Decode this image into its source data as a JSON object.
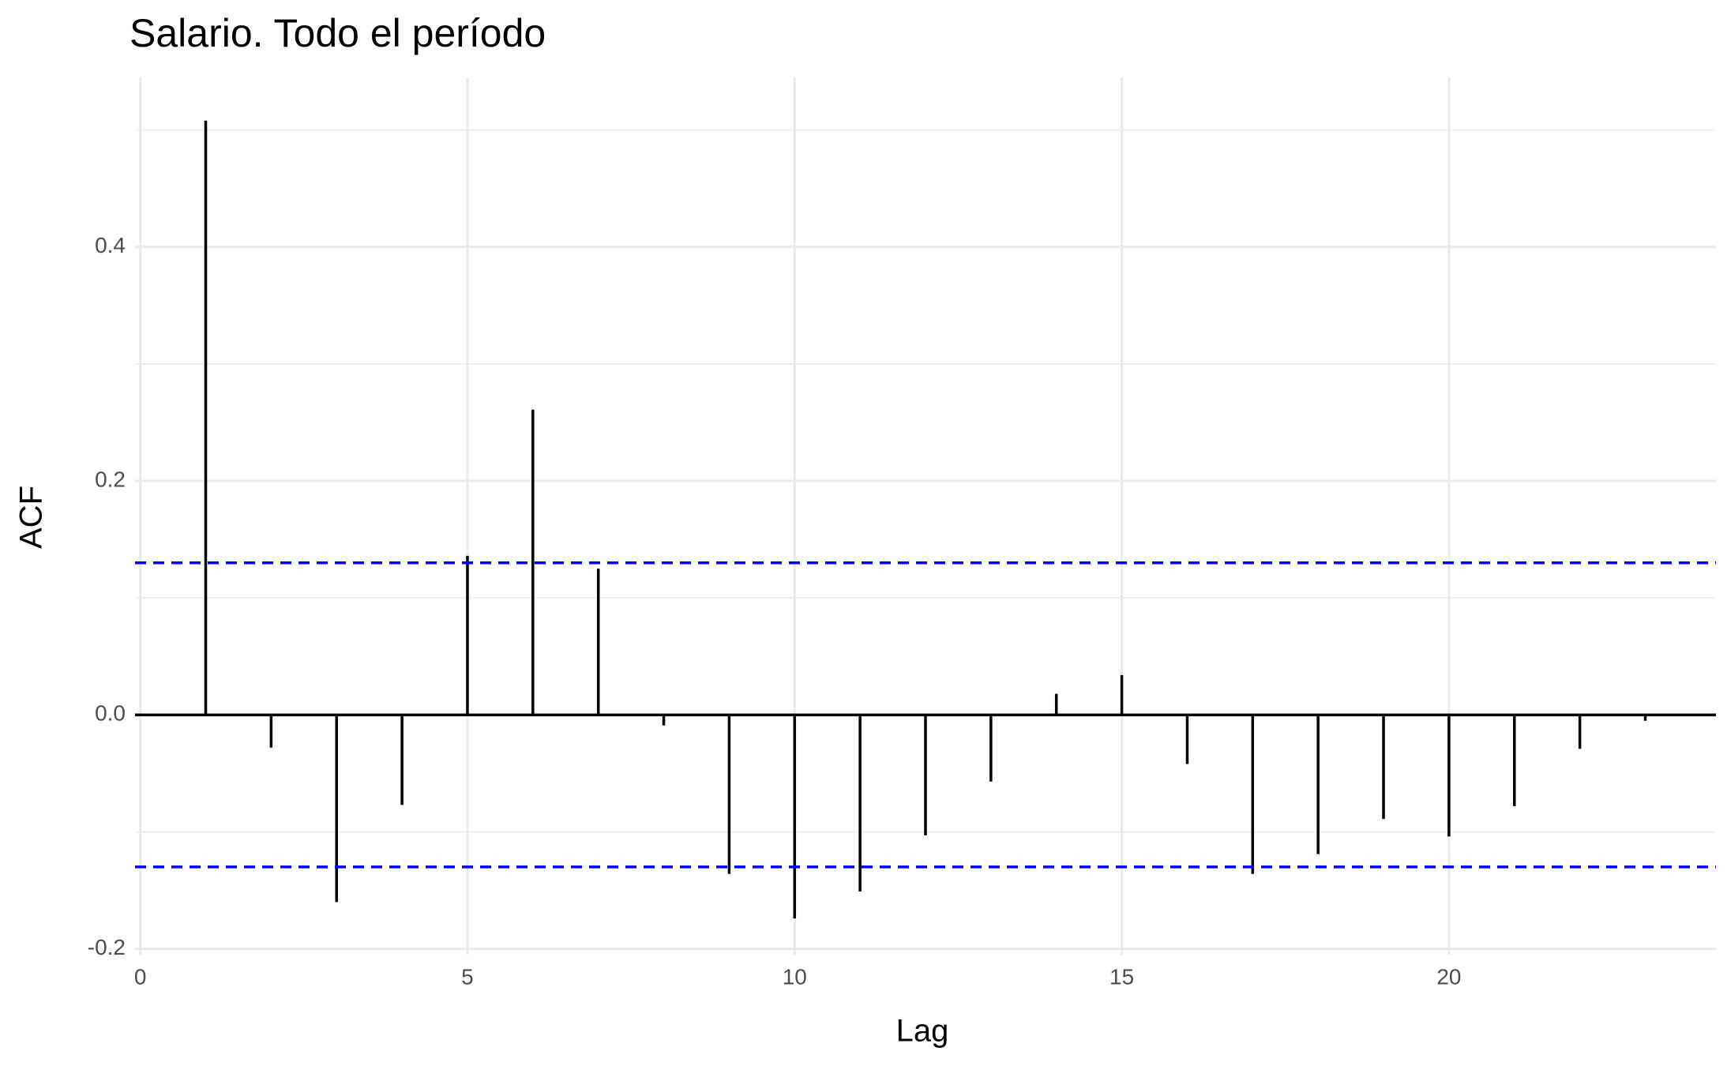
{
  "chart_data": {
    "type": "acf",
    "title": "Salario. Todo el período",
    "x_label": "Lag",
    "y_label": "ACF",
    "x": [
      1,
      2,
      3,
      4,
      5,
      6,
      7,
      8,
      9,
      10,
      11,
      12,
      13,
      14,
      15,
      16,
      17,
      18,
      19,
      20,
      21,
      22,
      23
    ],
    "values": [
      0.508,
      -0.028,
      -0.16,
      -0.077,
      0.136,
      0.261,
      0.125,
      -0.009,
      -0.136,
      -0.174,
      -0.151,
      -0.103,
      -0.057,
      0.018,
      0.034,
      -0.042,
      -0.136,
      -0.119,
      -0.089,
      -0.104,
      -0.078,
      -0.029,
      -0.005
    ],
    "color": "#000000",
    "confidence_bounds": [
      0.13,
      -0.13
    ],
    "confidence_color": "#0000ff",
    "xlim": [
      -0.08,
      24.08
    ],
    "xticks": [
      0,
      5,
      10,
      15,
      20
    ],
    "ylim": [
      -0.205,
      0.545
    ],
    "yticks": [
      {
        "value": -0.2,
        "label": "-0.2"
      },
      {
        "value": 0,
        "label": "0.0"
      },
      {
        "value": 0.2,
        "label": "0.2"
      },
      {
        "value": 0.4,
        "label": "0.4"
      }
    ],
    "minor_yticks": [
      -0.1,
      0.1,
      0.3,
      0.5
    ],
    "grid": true
  }
}
